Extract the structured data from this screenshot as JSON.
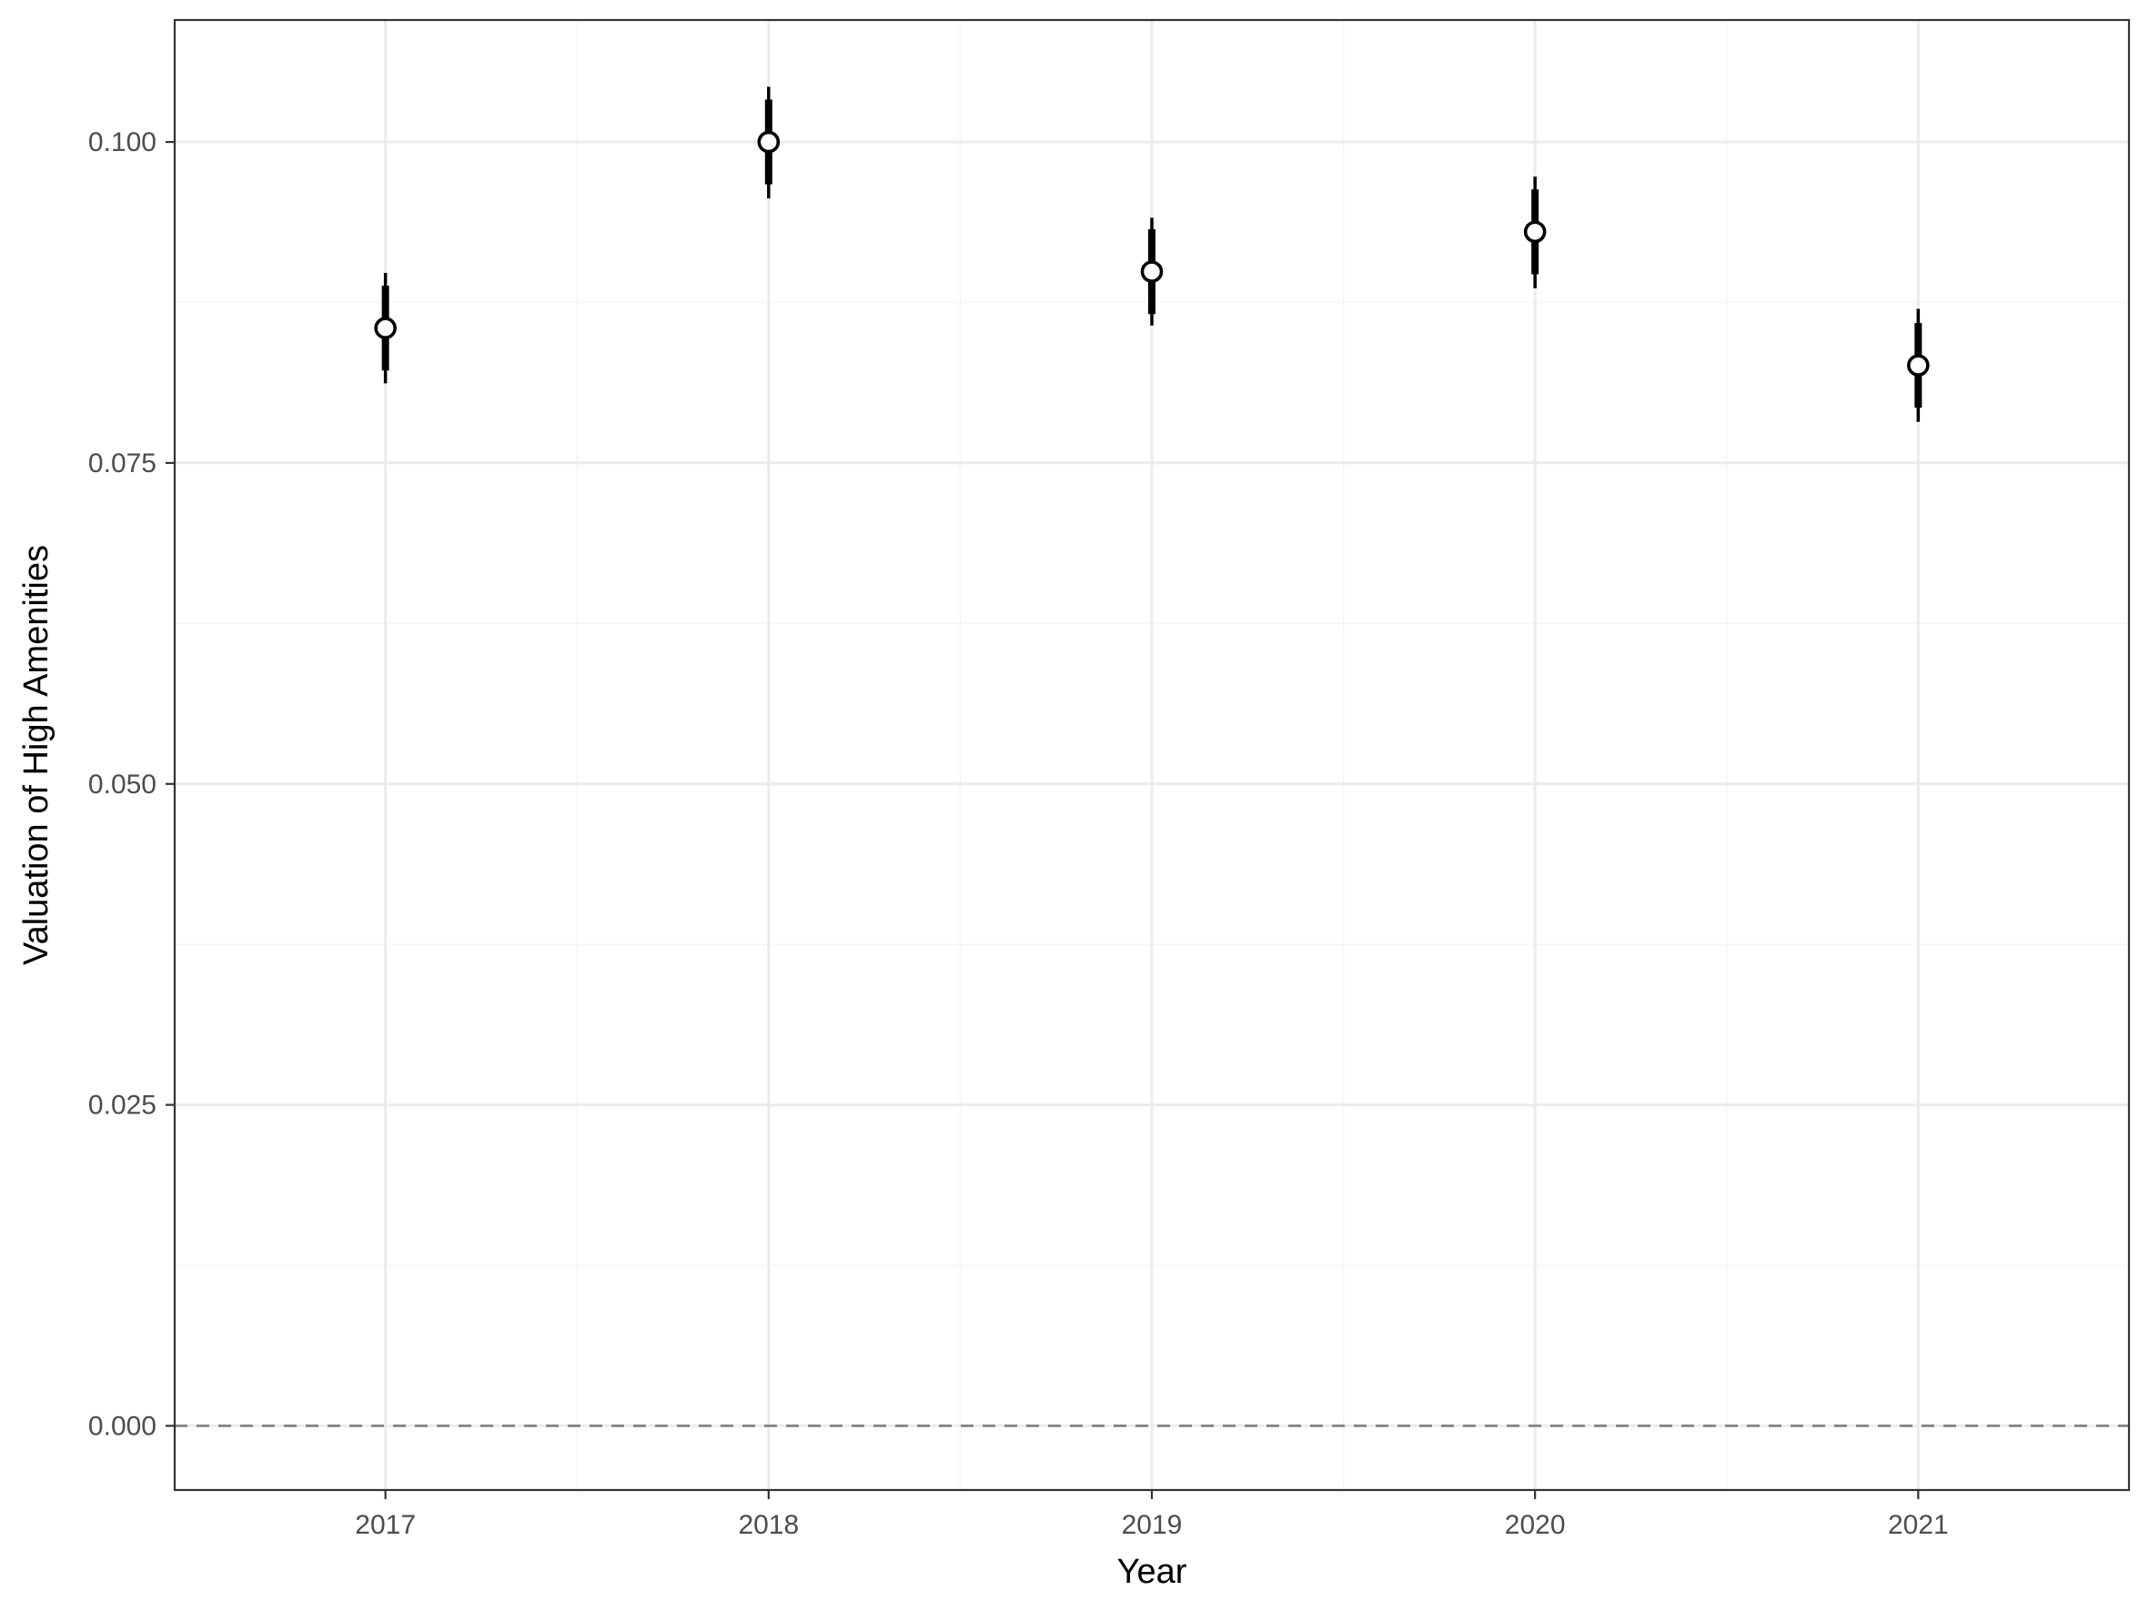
{
  "chart_data": {
    "type": "scatter",
    "title": "",
    "xlabel": "Year",
    "ylabel": "Valuation of High Amenities",
    "categories": [
      "2017",
      "2018",
      "2019",
      "2020",
      "2021"
    ],
    "series": [
      {
        "values": [
          0.0855,
          0.1,
          0.0899,
          0.093,
          0.0826
        ],
        "inner_low": [
          0.0822,
          0.0967,
          0.0866,
          0.0897,
          0.0793
        ],
        "inner_high": [
          0.0888,
          0.1033,
          0.0932,
          0.0963,
          0.0859
        ],
        "outer_low": [
          0.0812,
          0.0956,
          0.0857,
          0.0886,
          0.0782
        ],
        "outer_high": [
          0.0898,
          0.1043,
          0.0941,
          0.0973,
          0.087
        ]
      }
    ],
    "ylim": [
      -0.005,
      0.1095
    ],
    "yticks": [
      "0.000",
      "0.025",
      "0.050",
      "0.075",
      "0.100"
    ],
    "ytick_values": [
      0,
      0.025,
      0.05,
      0.075,
      0.1
    ],
    "reference_line": {
      "y": 0,
      "style": "dashed",
      "color": "#7f7f7f"
    },
    "grid": true,
    "legend": "none",
    "colors": {
      "point_fill": "#ffffff",
      "point_stroke": "#000000",
      "interval": "#000000",
      "grid_major": "#ebebeb",
      "grid_minor": "#f5f5f5",
      "panel_border": "#333333"
    }
  }
}
